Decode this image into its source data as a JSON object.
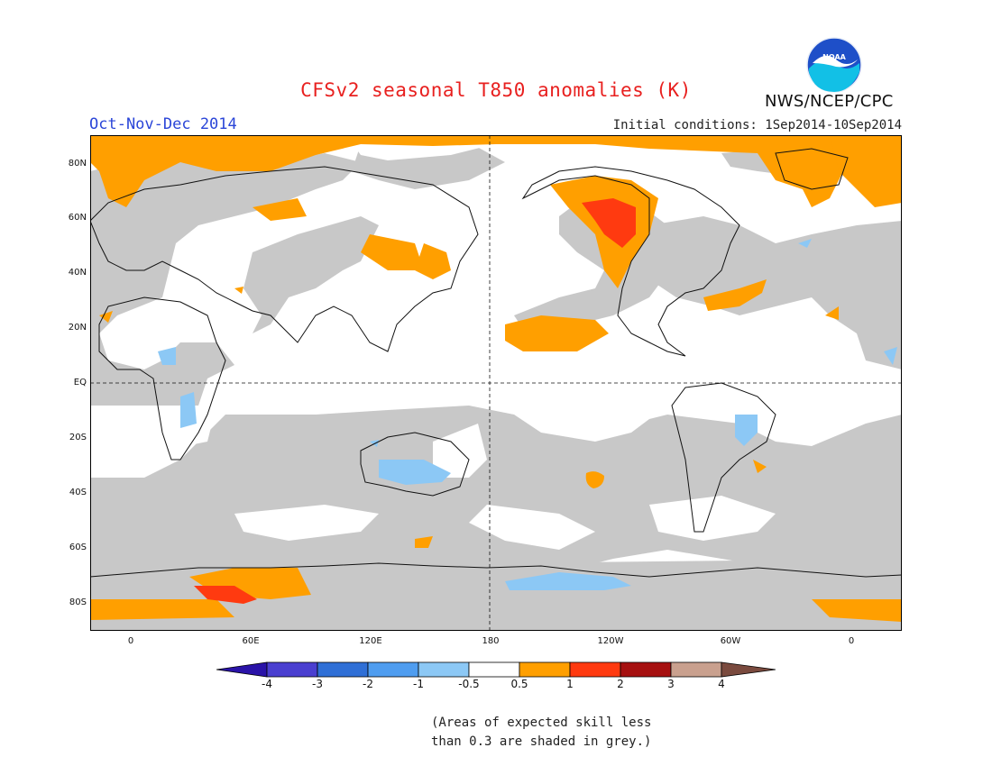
{
  "title": "CFSv2 seasonal T850 anomalies (K)",
  "season": "Oct-Nov-Dec 2014",
  "initial_conditions": "Initial conditions: 1Sep2014-10Sep2014",
  "agency": "NWS/NCEP/CPC",
  "logo_text": "NOAA",
  "lat_labels": [
    "80N",
    "60N",
    "40N",
    "20N",
    "EQ",
    "20S",
    "40S",
    "60S",
    "80S"
  ],
  "lon_labels": [
    "0",
    "60E",
    "120E",
    "180",
    "120W",
    "60W",
    "0"
  ],
  "colorbar": {
    "labels": [
      "-4",
      "-3",
      "-2",
      "-1",
      "-0.5",
      "0.5",
      "1",
      "2",
      "3",
      "4"
    ],
    "colors": [
      "#2a13a8",
      "#4a3fd0",
      "#2f6fd6",
      "#4f9df0",
      "#8cc8f5",
      "#ffffff",
      "#ff9f00",
      "#ff3a10",
      "#a61010",
      "#c9a08e",
      "#7a4a3e"
    ]
  },
  "skill_shading_color": "#c8c8c8",
  "note_line1": "(Areas of expected skill less",
  "note_line2": "than 0.3 are shaded in grey.)"
}
